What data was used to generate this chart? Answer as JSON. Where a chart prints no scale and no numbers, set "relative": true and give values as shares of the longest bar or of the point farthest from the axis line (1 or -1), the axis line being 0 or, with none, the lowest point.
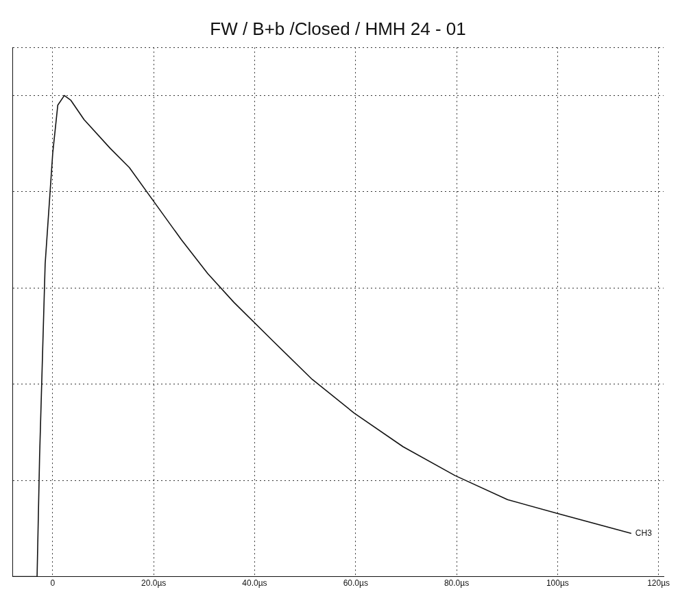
{
  "chart_data": {
    "type": "line",
    "title": "FW / B+b /Closed / HMH 24 - 01",
    "relative": true,
    "grid": true,
    "legend": false,
    "marker": "none",
    "line_style": "solid",
    "xlim": [
      -8,
      121
    ],
    "xticks": [
      {
        "value": 0,
        "label": "0"
      },
      {
        "value": 20,
        "label": "20.0µs"
      },
      {
        "value": 40,
        "label": "40.0µs"
      },
      {
        "value": 60,
        "label": "60.0µs"
      },
      {
        "value": 80,
        "label": "80.0µs"
      },
      {
        "value": 100,
        "label": "100µs"
      },
      {
        "value": 120,
        "label": "120µs"
      }
    ],
    "annotations": [
      "CH3"
    ],
    "series": [
      {
        "color": "#111111",
        "x": [
          -8,
          -3.5,
          -3.1,
          -2.6,
          -1.5,
          0,
          1,
          2.3,
          3.6,
          6.2,
          11.4,
          15.2,
          20,
          25.5,
          30.7,
          35.9,
          43.6,
          51.4,
          59.7,
          69.4,
          79.7,
          90.1,
          100.4,
          114.6
        ],
        "values": [
          0,
          0,
          0,
          0.25,
          0.65,
          0.88,
          0.98,
          1,
          0.99,
          0.95,
          0.89,
          0.85,
          0.78,
          0.7,
          0.63,
          0.57,
          0.49,
          0.41,
          0.34,
          0.27,
          0.21,
          0.16,
          0.13,
          0.09
        ]
      }
    ]
  }
}
